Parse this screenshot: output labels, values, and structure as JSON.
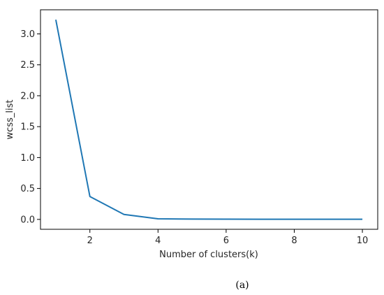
{
  "chart_data": {
    "type": "line",
    "x": [
      1,
      2,
      3,
      4,
      5,
      6,
      7,
      8,
      9,
      10
    ],
    "series": [
      {
        "values": [
          3.23,
          0.37,
          0.08,
          0.01,
          0.005,
          0.004,
          0.003,
          0.002,
          0.002,
          0.002
        ],
        "color": "#1f77b4"
      }
    ],
    "xlabel": "Number of clusters(k)",
    "ylabel": "wcss_list",
    "xlim": [
      0.55,
      10.45
    ],
    "ylim": [
      -0.16,
      3.39
    ],
    "x_ticks": [
      2,
      4,
      6,
      8,
      10
    ],
    "x_tick_labels": [
      "2",
      "4",
      "6",
      "8",
      "10"
    ],
    "y_ticks": [
      0.0,
      0.5,
      1.0,
      1.5,
      2.0,
      2.5,
      3.0
    ],
    "y_tick_labels": [
      "0.0",
      "0.5",
      "1.0",
      "1.5",
      "2.0",
      "2.5",
      "3.0"
    ],
    "grid": false,
    "legend": "none"
  },
  "caption": "(a)"
}
